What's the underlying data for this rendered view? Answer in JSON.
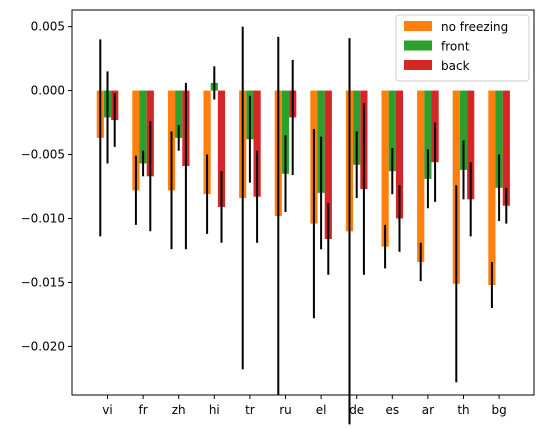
{
  "chart_data": {
    "type": "bar",
    "title": "",
    "xlabel": "",
    "ylabel": "",
    "ylim": [
      -0.0238,
      0.0063
    ],
    "y_ticks": [
      0.005,
      0.0,
      -0.005,
      -0.01,
      -0.015,
      -0.02
    ],
    "y_tick_labels": [
      "0.005",
      "0.000",
      "−0.005",
      "−0.010",
      "−0.015",
      "−0.020"
    ],
    "grid": false,
    "legend_position": "top-right",
    "categories": [
      "vi",
      "fr",
      "zh",
      "hi",
      "tr",
      "ru",
      "el",
      "de",
      "es",
      "ar",
      "th",
      "bg"
    ],
    "series": [
      {
        "name": "no freezing",
        "color": "#ff7f0e",
        "values": [
          -0.0037,
          -0.0078,
          -0.0078,
          -0.0081,
          -0.0084,
          -0.0098,
          -0.0104,
          -0.011,
          -0.0122,
          -0.0134,
          -0.0151,
          -0.0152
        ],
        "errors": [
          0.0077,
          0.0027,
          0.0046,
          0.0031,
          0.0134,
          0.014,
          0.0074,
          0.0151,
          0.0017,
          0.0015,
          0.0077,
          0.0018
        ]
      },
      {
        "name": "front",
        "color": "#2ca02c",
        "values": [
          -0.0021,
          -0.0057,
          -0.0037,
          0.0006,
          -0.0038,
          -0.0065,
          -0.008,
          -0.0058,
          -0.0063,
          -0.0069,
          -0.0062,
          -0.0076
        ]
      },
      {
        "name": "back",
        "color": "#d62728",
        "values": [
          -0.0023,
          -0.0067,
          -0.0059,
          -0.0091,
          -0.0083,
          -0.0021,
          -0.0116,
          -0.0077,
          -0.01,
          -0.0056,
          -0.0085,
          -0.009
        ]
      }
    ],
    "error_color": "#000000"
  }
}
